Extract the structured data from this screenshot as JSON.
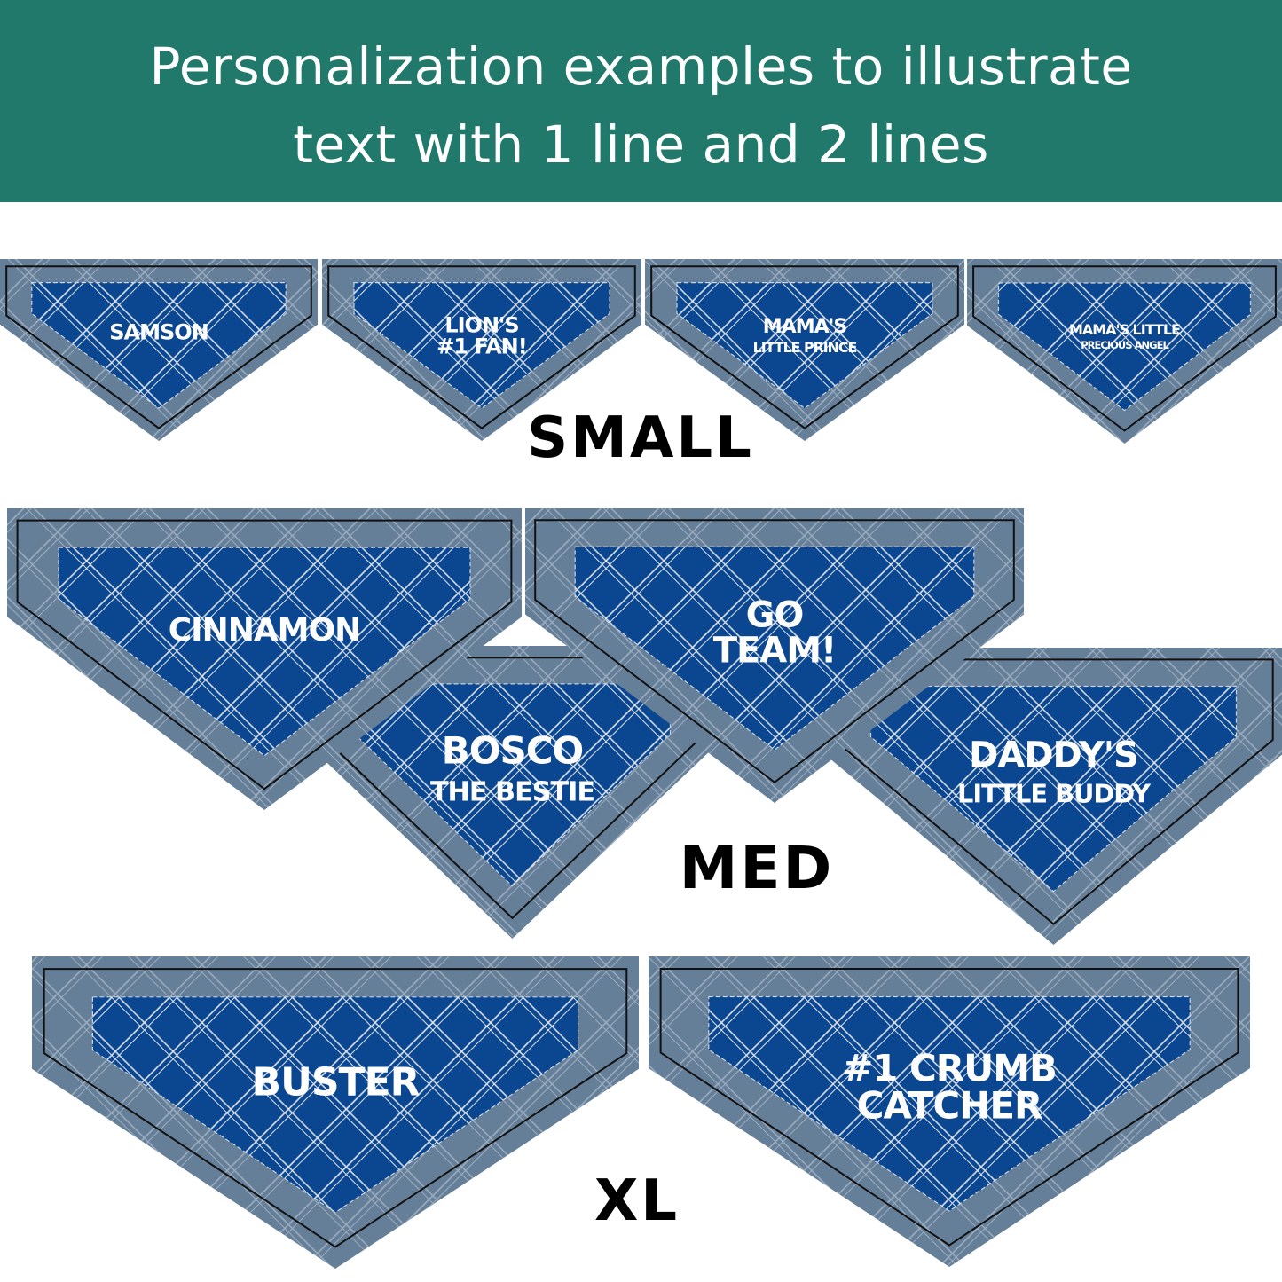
{
  "header": {
    "title_line1": "Personalization examples to illustrate",
    "title_line2": "text with 1 line and 2 lines",
    "background": "#20796a"
  },
  "colors": {
    "border_gray": "#667f99",
    "fabric_blue": "#0b4690",
    "plaid_line": "#dfe6ee"
  },
  "groups": [
    {
      "label": "SMALL",
      "bandanas": [
        {
          "lines": [
            "SAMSON"
          ]
        },
        {
          "lines": [
            "LION'S",
            "#1 FAN!"
          ]
        },
        {
          "lines": [
            "MAMA'S",
            "LITTLE PRINCE"
          ]
        },
        {
          "lines": [
            "MAMA'S LITTLE",
            "PRECIOUS ANGEL"
          ]
        }
      ]
    },
    {
      "label": "MED",
      "bandanas": [
        {
          "lines": [
            "CINNAMON"
          ]
        },
        {
          "lines": [
            "BOSCO",
            "THE BESTIE"
          ]
        },
        {
          "lines": [
            "GO",
            "TEAM!"
          ]
        },
        {
          "lines": [
            "DADDY'S",
            "LITTLE BUDDY"
          ]
        }
      ]
    },
    {
      "label": "XL",
      "bandanas": [
        {
          "lines": [
            "BUSTER"
          ]
        },
        {
          "lines": [
            "#1 CRUMB",
            "CATCHER"
          ]
        }
      ]
    }
  ]
}
